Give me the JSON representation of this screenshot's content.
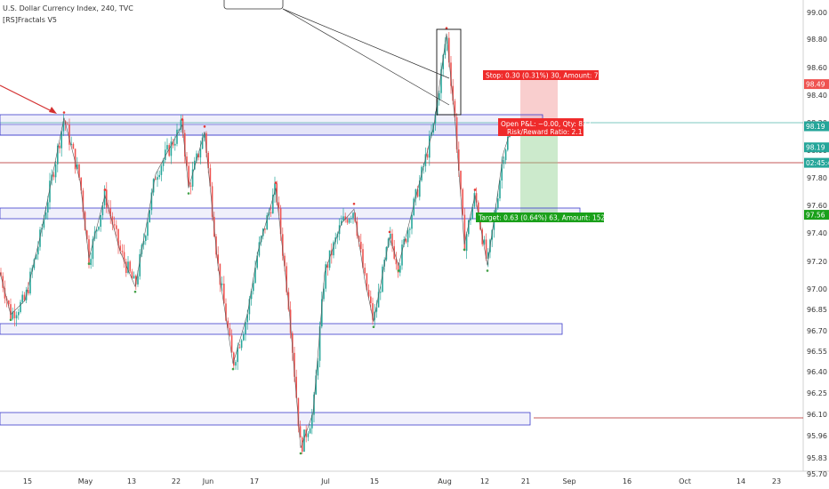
{
  "header": {
    "title": "U.S. Dollar Currency Index, 240, TVC",
    "indicator": "[RS]Fractals V5"
  },
  "colors": {
    "up": "#26a69a",
    "down": "#ef5350",
    "zone": "#3d3dcc",
    "profit": "#8fd18f",
    "loss": "#f4a6a6",
    "current": "#26a69a"
  },
  "chart_data": {
    "type": "candlestick",
    "ylim": [
      95.7,
      99.05
    ],
    "y_ticks": [
      "99.00",
      "98.80",
      "98.60",
      "98.40",
      "98.20",
      "98.00",
      "97.80",
      "97.60",
      "97.40",
      "97.20",
      "97.00",
      "96.85",
      "96.70",
      "96.55",
      "96.40",
      "96.25",
      "96.10",
      "95.96",
      "95.83",
      "95.70"
    ],
    "x_ticks": [
      "15",
      "May",
      "13",
      "22",
      "Jun",
      "17",
      "Jul",
      "15",
      "Aug",
      "12",
      "21",
      "Sep",
      "16",
      "Oct",
      "14",
      "23"
    ],
    "price_tags": [
      {
        "label": "98.49",
        "value": 98.49,
        "color": "#ef5350"
      },
      {
        "label": "98.19",
        "value": 98.19,
        "color": "#26a69a"
      },
      {
        "label": "98.19",
        "value": 98.04,
        "color": "#26a69a"
      },
      {
        "label": "02:45:45",
        "value": 97.93,
        "color": "#26a69a"
      },
      {
        "label": "97.56",
        "value": 97.56,
        "color": "#1aa01a"
      }
    ],
    "position": {
      "stop_label": "Stop: 0.30 (0.31%) 30, Amount: 750.1",
      "pnl_label": "Open P&L: −0.00, Qty: 833",
      "rr_label": "Risk/Reward Ratio: 2.1",
      "target_label": "Target: 0.63 (0.64%) 63, Amount: 1524.79",
      "entry": 98.19,
      "stop": 98.49,
      "target": 97.56
    }
  }
}
